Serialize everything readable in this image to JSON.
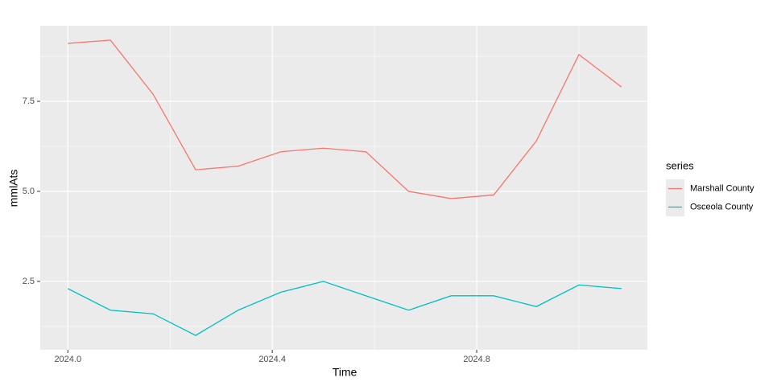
{
  "chart_data": {
    "type": "line",
    "x_label": "Time",
    "y_label": "mmlAts",
    "x": [
      2024.0,
      2024.0833,
      2024.1667,
      2024.25,
      2024.3333,
      2024.4167,
      2024.5,
      2024.5833,
      2024.6667,
      2024.75,
      2024.8333,
      2024.9167,
      2025.0,
      2025.0833
    ],
    "series": [
      {
        "name": "Marshall County",
        "color": "#f8766d",
        "values": [
          9.11,
          9.2,
          7.7,
          5.6,
          5.7,
          6.1,
          6.2,
          6.1,
          5.0,
          4.8,
          4.9,
          6.4,
          8.8,
          7.9
        ]
      },
      {
        "name": "Osceola County",
        "color": "#00bfc4",
        "values": [
          2.3,
          1.7,
          1.6,
          1.0,
          1.7,
          2.2,
          2.5,
          2.1,
          1.7,
          2.1,
          2.1,
          1.8,
          2.4,
          2.3
        ]
      }
    ],
    "xlim": [
      2023.946,
      2025.134
    ],
    "ylim": [
      0.6,
      9.6
    ],
    "xticks": [
      {
        "value": 2024.0,
        "label": "2024.0"
      },
      {
        "value": 2024.4,
        "label": "2024.4"
      },
      {
        "value": 2024.8,
        "label": "2024.8"
      }
    ],
    "yticks": [
      2.5,
      {
        "value": 5.0,
        "label": "5.0"
      },
      7.5
    ],
    "xminor": [
      2024.2,
      2024.6,
      2025.0
    ],
    "yminor": [
      1.25,
      3.75,
      6.25,
      8.75
    ],
    "grid": true,
    "legend_title": "series",
    "legend_position": "right"
  }
}
